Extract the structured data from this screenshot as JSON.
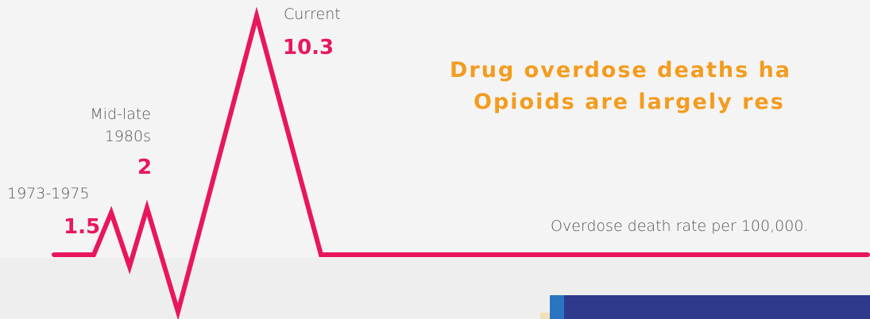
{
  "headline": {
    "line1": "Drug overdose deaths ha",
    "line2": "Opioids are largely res"
  },
  "caption": "Overdose death rate per 100,000.",
  "chart_data": {
    "type": "line",
    "series": [
      {
        "points": [
          {
            "label": "1973-1975",
            "label_lines": [
              "1973-1975"
            ],
            "value": "1.5"
          },
          {
            "label": "Mid-late 1980s",
            "label_lines": [
              "Mid-late",
              "1980s"
            ],
            "value": "2"
          },
          {
            "label": "Current",
            "label_lines": [
              "Current"
            ],
            "value": "10.3"
          }
        ]
      }
    ]
  },
  "colors": {
    "line": "#e8175d",
    "headline": "#f39c1f",
    "label": "#555555",
    "panel": "#2e3a8c",
    "panel_accent": "#2a75c0"
  }
}
